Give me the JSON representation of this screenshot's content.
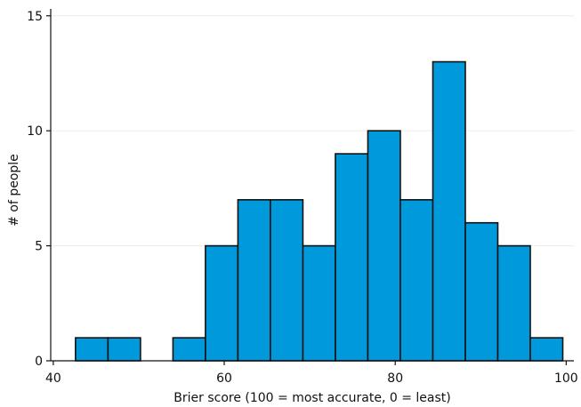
{
  "chart_data": {
    "type": "bar",
    "subtype": "histogram",
    "xlabel": "Brier score (100 = most accurate, 0 = least)",
    "ylabel": "# of people",
    "xlim": [
      39.7,
      100.9
    ],
    "ylim": [
      0,
      15.3
    ],
    "xticks": [
      40,
      60,
      80,
      100
    ],
    "yticks": [
      0,
      5,
      10,
      15
    ],
    "grid": "horizontal",
    "bar_color": "#0099db",
    "bar_edge_color": "#111111",
    "bins": [
      {
        "x0": 42.6,
        "x1": 46.4,
        "value": 1
      },
      {
        "x0": 46.4,
        "x1": 50.2,
        "value": 1
      },
      {
        "x0": 50.2,
        "x1": 54.0,
        "value": 0
      },
      {
        "x0": 54.0,
        "x1": 57.8,
        "value": 1
      },
      {
        "x0": 57.8,
        "x1": 61.6,
        "value": 5
      },
      {
        "x0": 61.6,
        "x1": 65.4,
        "value": 7
      },
      {
        "x0": 65.4,
        "x1": 69.2,
        "value": 7
      },
      {
        "x0": 69.2,
        "x1": 73.0,
        "value": 5
      },
      {
        "x0": 73.0,
        "x1": 76.8,
        "value": 9
      },
      {
        "x0": 76.8,
        "x1": 80.6,
        "value": 10
      },
      {
        "x0": 80.6,
        "x1": 84.4,
        "value": 7
      },
      {
        "x0": 84.4,
        "x1": 88.2,
        "value": 13
      },
      {
        "x0": 88.2,
        "x1": 92.0,
        "value": 6
      },
      {
        "x0": 92.0,
        "x1": 95.8,
        "value": 5
      },
      {
        "x0": 95.8,
        "x1": 99.6,
        "value": 1
      }
    ]
  }
}
